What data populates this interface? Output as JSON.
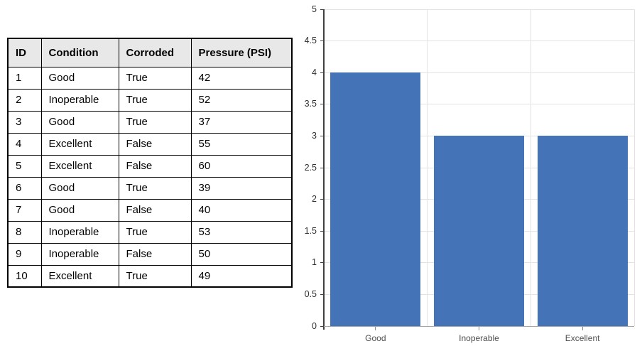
{
  "table": {
    "columns": [
      "ID",
      "Condition",
      "Corroded",
      "Pressure (PSI)"
    ],
    "rows": [
      [
        1,
        "Good",
        "True",
        42
      ],
      [
        2,
        "Inoperable",
        "True",
        52
      ],
      [
        3,
        "Good",
        "True",
        37
      ],
      [
        4,
        "Excellent",
        "False",
        55
      ],
      [
        5,
        "Excellent",
        "False",
        60
      ],
      [
        6,
        "Good",
        "True",
        39
      ],
      [
        7,
        "Good",
        "False",
        40
      ],
      [
        8,
        "Inoperable",
        "True",
        53
      ],
      [
        9,
        "Inoperable",
        "False",
        50
      ],
      [
        10,
        "Excellent",
        "True",
        49
      ]
    ],
    "header_bg_color": "#e9e8e8",
    "border_color": "#000000"
  },
  "chart_data": {
    "type": "bar",
    "title": "",
    "categories": [
      "Good",
      "Inoperable",
      "Excellent"
    ],
    "values": [
      4,
      3,
      3
    ],
    "xlabel": "",
    "ylabel": "",
    "ylim": [
      0,
      5
    ],
    "ytick_step": 0.5,
    "ytick_labels": [
      "0",
      "0.5",
      "1",
      "1.5",
      "2",
      "2.5",
      "3",
      "3.5",
      "4",
      "4.5",
      "5"
    ],
    "grid": true,
    "legend": "none",
    "bar_color": "#4473b7",
    "gridline_color": "#e3e3e3",
    "axis_color": "#404040",
    "x_axis_line_color": "#a6a6a6",
    "ytick_label_color": "#303030",
    "xtick_label_color": "#4d4d4d"
  }
}
